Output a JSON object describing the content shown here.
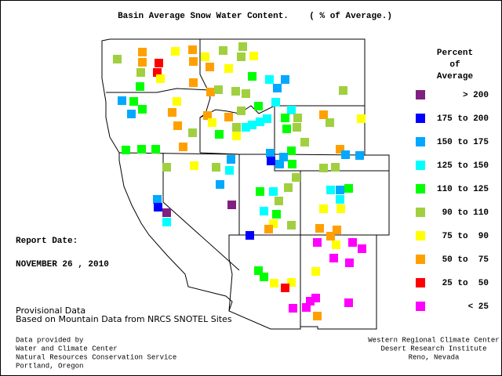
{
  "title": "Basin Average Snow Water Content.    ( % of Average.)",
  "legend": {
    "title_lines": [
      "Percent",
      "of",
      "Average"
    ],
    "items": [
      {
        "label": "> 200",
        "color": "#802080"
      },
      {
        "label": "175 to 200",
        "color": "#0000ff"
      },
      {
        "label": "150 to 175",
        "color": "#00a8ff"
      },
      {
        "label": "125 to 150",
        "color": "#00ffff"
      },
      {
        "label": "110 to 125",
        "color": "#00ff00"
      },
      {
        "label": "90 to 110",
        "color": "#a0d040"
      },
      {
        "label": "75 to  90",
        "color": "#ffff00"
      },
      {
        "label": "50 to  75",
        "color": "#ffa000"
      },
      {
        "label": "25 to  50",
        "color": "#ff0000"
      },
      {
        "label": "< 25",
        "color": "#ff00ff"
      }
    ]
  },
  "report": {
    "label": "Report Date:",
    "date": "NOVEMBER 26 , 2010"
  },
  "notes": [
    "Provisional Data",
    "Based on Mountain Data from NRCS SNOTEL Sites"
  ],
  "footer_left": [
    "Data provided by",
    "Water and Climate Center",
    "Natural Resources Conservation Service",
    "Portland, Oregon"
  ],
  "footer_right": [
    "Western Regional Climate Center",
    "Desert Research Institute",
    "Reno, Nevada"
  ]
}
